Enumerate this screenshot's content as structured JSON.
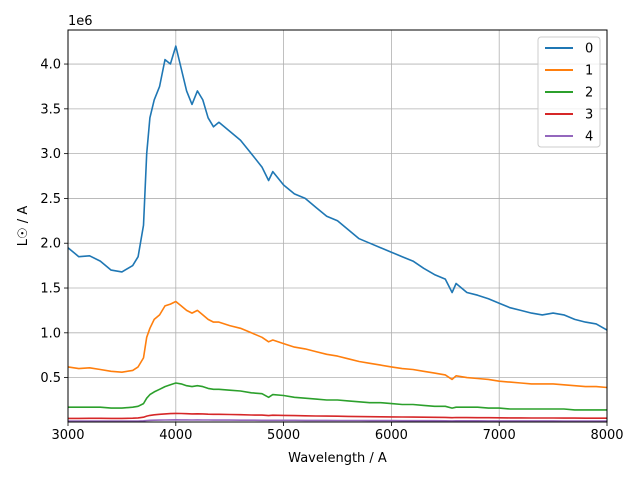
{
  "chart_data": {
    "type": "line",
    "title": "",
    "xlabel": "Wavelength / A",
    "ylabel": "L☉ / A",
    "y_offset_label": "1e6",
    "xlim": [
      3000,
      8000
    ],
    "ylim": [
      0.0045,
      4.38
    ],
    "x_scale": 1,
    "y_scale_factor": 1000000,
    "xticks": [
      "3000",
      "4000",
      "5000",
      "6000",
      "7000",
      "8000"
    ],
    "xtick_values": [
      3000,
      4000,
      5000,
      6000,
      7000,
      8000
    ],
    "yticks": [
      "0.5",
      "1.0",
      "1.5",
      "2.0",
      "2.5",
      "3.0",
      "3.5",
      "4.0"
    ],
    "ytick_values": [
      0.5,
      1.0,
      1.5,
      2.0,
      2.5,
      3.0,
      3.5,
      4.0
    ],
    "grid": true,
    "legend_position": "top-right",
    "x": [
      3000,
      3100,
      3200,
      3300,
      3400,
      3500,
      3600,
      3650,
      3700,
      3730,
      3760,
      3800,
      3850,
      3900,
      3950,
      4000,
      4050,
      4100,
      4150,
      4200,
      4250,
      4300,
      4350,
      4400,
      4500,
      4600,
      4700,
      4800,
      4861,
      4900,
      5000,
      5100,
      5200,
      5300,
      5400,
      5500,
      5600,
      5700,
      5800,
      5900,
      6000,
      6100,
      6200,
      6300,
      6400,
      6500,
      6563,
      6600,
      6700,
      6800,
      6900,
      7000,
      7100,
      7200,
      7300,
      7400,
      7500,
      7600,
      7700,
      7800,
      7900,
      8000
    ],
    "series": [
      {
        "name": "0",
        "color": "#1f77b4",
        "values": [
          1.95,
          1.85,
          1.86,
          1.8,
          1.7,
          1.68,
          1.75,
          1.85,
          2.2,
          3.0,
          3.4,
          3.6,
          3.75,
          4.05,
          4.0,
          4.2,
          3.95,
          3.7,
          3.55,
          3.7,
          3.6,
          3.4,
          3.3,
          3.35,
          3.25,
          3.15,
          3.0,
          2.85,
          2.7,
          2.8,
          2.65,
          2.55,
          2.5,
          2.4,
          2.3,
          2.25,
          2.15,
          2.05,
          2.0,
          1.95,
          1.9,
          1.85,
          1.8,
          1.72,
          1.65,
          1.6,
          1.45,
          1.55,
          1.45,
          1.42,
          1.38,
          1.33,
          1.28,
          1.25,
          1.22,
          1.2,
          1.22,
          1.2,
          1.15,
          1.12,
          1.1,
          1.03
        ]
      },
      {
        "name": "1",
        "color": "#ff7f0e",
        "values": [
          0.62,
          0.6,
          0.61,
          0.59,
          0.57,
          0.56,
          0.58,
          0.62,
          0.72,
          0.95,
          1.05,
          1.15,
          1.2,
          1.3,
          1.32,
          1.35,
          1.3,
          1.25,
          1.22,
          1.25,
          1.2,
          1.15,
          1.12,
          1.12,
          1.08,
          1.05,
          1.0,
          0.95,
          0.9,
          0.92,
          0.88,
          0.84,
          0.82,
          0.79,
          0.76,
          0.74,
          0.71,
          0.68,
          0.66,
          0.64,
          0.62,
          0.6,
          0.59,
          0.57,
          0.55,
          0.53,
          0.48,
          0.52,
          0.5,
          0.49,
          0.48,
          0.46,
          0.45,
          0.44,
          0.43,
          0.43,
          0.43,
          0.42,
          0.41,
          0.4,
          0.4,
          0.39
        ]
      },
      {
        "name": "2",
        "color": "#2ca02c",
        "values": [
          0.17,
          0.17,
          0.17,
          0.17,
          0.16,
          0.16,
          0.17,
          0.18,
          0.21,
          0.27,
          0.31,
          0.34,
          0.37,
          0.4,
          0.42,
          0.44,
          0.43,
          0.41,
          0.4,
          0.41,
          0.4,
          0.38,
          0.37,
          0.37,
          0.36,
          0.35,
          0.33,
          0.32,
          0.28,
          0.31,
          0.3,
          0.28,
          0.27,
          0.26,
          0.25,
          0.25,
          0.24,
          0.23,
          0.22,
          0.22,
          0.21,
          0.2,
          0.2,
          0.19,
          0.18,
          0.18,
          0.16,
          0.17,
          0.17,
          0.17,
          0.16,
          0.16,
          0.15,
          0.15,
          0.15,
          0.15,
          0.15,
          0.15,
          0.14,
          0.14,
          0.14,
          0.14
        ]
      },
      {
        "name": "3",
        "color": "#d62728",
        "values": [
          0.045,
          0.045,
          0.046,
          0.046,
          0.045,
          0.045,
          0.047,
          0.05,
          0.058,
          0.07,
          0.078,
          0.085,
          0.09,
          0.095,
          0.098,
          0.1,
          0.099,
          0.097,
          0.095,
          0.096,
          0.095,
          0.092,
          0.09,
          0.09,
          0.088,
          0.086,
          0.083,
          0.081,
          0.076,
          0.08,
          0.078,
          0.076,
          0.074,
          0.072,
          0.07,
          0.069,
          0.067,
          0.065,
          0.064,
          0.063,
          0.061,
          0.06,
          0.059,
          0.058,
          0.057,
          0.056,
          0.052,
          0.055,
          0.054,
          0.053,
          0.052,
          0.051,
          0.05,
          0.05,
          0.049,
          0.049,
          0.049,
          0.048,
          0.048,
          0.047,
          0.047,
          0.047
        ]
      },
      {
        "name": "4",
        "color": "#9467bd",
        "values": [
          0.015,
          0.015,
          0.015,
          0.015,
          0.015,
          0.015,
          0.016,
          0.016,
          0.018,
          0.021,
          0.023,
          0.025,
          0.026,
          0.027,
          0.028,
          0.029,
          0.028,
          0.028,
          0.027,
          0.028,
          0.027,
          0.027,
          0.026,
          0.026,
          0.026,
          0.025,
          0.025,
          0.024,
          0.023,
          0.024,
          0.023,
          0.023,
          0.022,
          0.022,
          0.022,
          0.021,
          0.021,
          0.021,
          0.02,
          0.02,
          0.02,
          0.019,
          0.019,
          0.019,
          0.019,
          0.018,
          0.017,
          0.018,
          0.018,
          0.018,
          0.017,
          0.017,
          0.017,
          0.017,
          0.017,
          0.017,
          0.017,
          0.016,
          0.016,
          0.016,
          0.016,
          0.016
        ]
      }
    ]
  }
}
